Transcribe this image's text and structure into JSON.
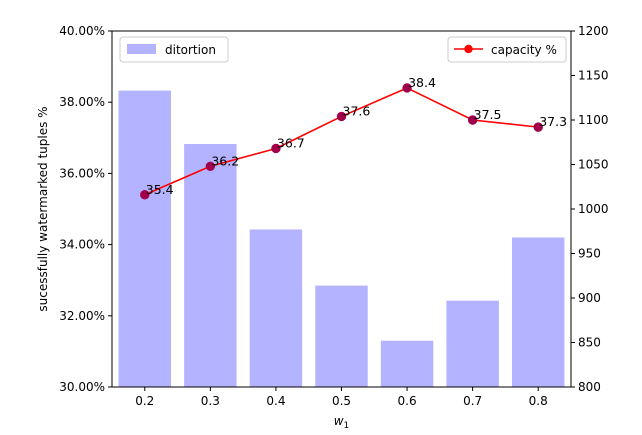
{
  "chart_data": {
    "type": "bar+line",
    "categories": [
      "0.2",
      "0.3",
      "0.4",
      "0.5",
      "0.6",
      "0.7",
      "0.8"
    ],
    "xlabel": "w",
    "xlabel_subscript": "1",
    "bars": {
      "name": "ditortion",
      "values": [
        1133,
        1073,
        977,
        914,
        852,
        897,
        968
      ],
      "axis": "right",
      "color": "#b3b3ff"
    },
    "line": {
      "name": "capacity %",
      "values": [
        35.4,
        36.2,
        36.7,
        37.6,
        38.4,
        37.5,
        37.3
      ],
      "labels": [
        "35.4",
        "36.2",
        "36.7",
        "37.6",
        "38.4",
        "37.5",
        "37.3"
      ],
      "axis": "left",
      "color": "#ff0000",
      "marker_color": "#a0004a"
    },
    "left_axis": {
      "label": "sucessfully watermarked tuples %",
      "ylim": [
        30,
        40
      ],
      "ticks": [
        30,
        32,
        34,
        36,
        38,
        40
      ],
      "tick_labels": [
        "30.00%",
        "32.00%",
        "34.00%",
        "36.00%",
        "38.00%",
        "40.00%"
      ]
    },
    "right_axis": {
      "ylim": [
        800,
        1200
      ],
      "ticks": [
        800,
        850,
        900,
        950,
        1000,
        1050,
        1100,
        1150,
        1200
      ],
      "tick_labels": [
        "800",
        "850",
        "900",
        "950",
        "1000",
        "1050",
        "1100",
        "1150",
        "1200"
      ]
    },
    "legends": [
      {
        "label": "ditortion",
        "position": "top-left",
        "kind": "bar"
      },
      {
        "label": "capacity %",
        "position": "top-right",
        "kind": "line"
      }
    ]
  }
}
